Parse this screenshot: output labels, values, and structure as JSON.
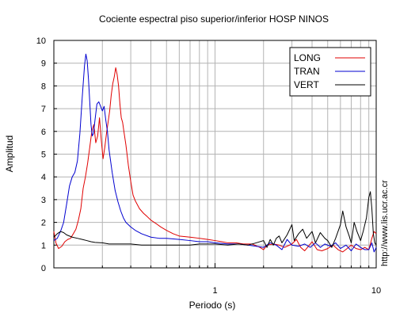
{
  "chart_data": {
    "type": "line",
    "title": "Cociente espectral piso superior/inferior  HOSP NINOS",
    "xlabel": "Periodo (s)",
    "ylabel": "Amplitud",
    "xscale": "log",
    "xlim": [
      0.1,
      10
    ],
    "ylim": [
      0,
      10
    ],
    "grid": true,
    "legend_position": "top-right",
    "watermark": "http://www.lis.ucr.ac.cr",
    "x_tick_labels": [
      "1",
      "10"
    ],
    "y_tick_labels": [
      "0",
      "1",
      "2",
      "3",
      "4",
      "5",
      "6",
      "7",
      "8",
      "9",
      "10"
    ],
    "series": [
      {
        "name": "LONG",
        "color": "#e00000",
        "points": [
          [
            0.1,
            1.6
          ],
          [
            0.103,
            1.1
          ],
          [
            0.107,
            0.85
          ],
          [
            0.112,
            0.95
          ],
          [
            0.117,
            1.15
          ],
          [
            0.122,
            1.25
          ],
          [
            0.127,
            1.3
          ],
          [
            0.132,
            1.5
          ],
          [
            0.137,
            1.7
          ],
          [
            0.142,
            2.1
          ],
          [
            0.147,
            2.6
          ],
          [
            0.152,
            3.5
          ],
          [
            0.157,
            4.0
          ],
          [
            0.162,
            4.6
          ],
          [
            0.167,
            5.3
          ],
          [
            0.172,
            6.0
          ],
          [
            0.177,
            6.3
          ],
          [
            0.182,
            5.5
          ],
          [
            0.187,
            5.8
          ],
          [
            0.192,
            6.6
          ],
          [
            0.197,
            5.6
          ],
          [
            0.202,
            4.8
          ],
          [
            0.207,
            5.3
          ],
          [
            0.212,
            5.9
          ],
          [
            0.217,
            6.4
          ],
          [
            0.222,
            6.9
          ],
          [
            0.227,
            7.6
          ],
          [
            0.232,
            8.1
          ],
          [
            0.237,
            8.4
          ],
          [
            0.242,
            8.8
          ],
          [
            0.247,
            8.5
          ],
          [
            0.252,
            8.0
          ],
          [
            0.257,
            7.2
          ],
          [
            0.262,
            6.6
          ],
          [
            0.267,
            6.4
          ],
          [
            0.272,
            6.0
          ],
          [
            0.28,
            5.4
          ],
          [
            0.29,
            4.5
          ],
          [
            0.3,
            3.8
          ],
          [
            0.31,
            3.2
          ],
          [
            0.32,
            2.95
          ],
          [
            0.34,
            2.6
          ],
          [
            0.36,
            2.4
          ],
          [
            0.38,
            2.25
          ],
          [
            0.4,
            2.1
          ],
          [
            0.43,
            1.95
          ],
          [
            0.46,
            1.8
          ],
          [
            0.5,
            1.65
          ],
          [
            0.55,
            1.5
          ],
          [
            0.6,
            1.4
          ],
          [
            0.7,
            1.35
          ],
          [
            0.8,
            1.3
          ],
          [
            0.9,
            1.25
          ],
          [
            1.0,
            1.2
          ],
          [
            1.1,
            1.15
          ],
          [
            1.2,
            1.1
          ],
          [
            1.35,
            1.1
          ],
          [
            1.5,
            1.05
          ],
          [
            1.7,
            1.05
          ],
          [
            1.9,
            0.9
          ],
          [
            2.0,
            0.8
          ],
          [
            2.1,
            1.0
          ],
          [
            2.3,
            1.05
          ],
          [
            2.5,
            1.0
          ],
          [
            2.7,
            0.9
          ],
          [
            3.0,
            1.05
          ],
          [
            3.2,
            1.25
          ],
          [
            3.4,
            0.9
          ],
          [
            3.6,
            0.75
          ],
          [
            3.8,
            0.95
          ],
          [
            4.0,
            1.15
          ],
          [
            4.3,
            0.8
          ],
          [
            4.6,
            0.75
          ],
          [
            5.0,
            0.85
          ],
          [
            5.4,
            1.0
          ],
          [
            5.8,
            0.8
          ],
          [
            6.2,
            0.7
          ],
          [
            6.6,
            0.85
          ],
          [
            7.0,
            1.0
          ],
          [
            7.5,
            0.85
          ],
          [
            8.0,
            0.8
          ],
          [
            8.5,
            0.9
          ],
          [
            9.0,
            0.8
          ],
          [
            9.4,
            1.3
          ],
          [
            9.7,
            1.6
          ],
          [
            10.0,
            1.5
          ]
        ]
      },
      {
        "name": "TRAN",
        "color": "#0000d0",
        "points": [
          [
            0.1,
            1.2
          ],
          [
            0.105,
            1.3
          ],
          [
            0.11,
            1.6
          ],
          [
            0.115,
            2.0
          ],
          [
            0.12,
            2.8
          ],
          [
            0.125,
            3.6
          ],
          [
            0.13,
            4.0
          ],
          [
            0.135,
            4.2
          ],
          [
            0.14,
            4.7
          ],
          [
            0.145,
            5.9
          ],
          [
            0.15,
            7.5
          ],
          [
            0.155,
            8.9
          ],
          [
            0.158,
            9.4
          ],
          [
            0.161,
            9.1
          ],
          [
            0.164,
            8.3
          ],
          [
            0.167,
            7.3
          ],
          [
            0.17,
            6.3
          ],
          [
            0.173,
            5.8
          ],
          [
            0.176,
            5.9
          ],
          [
            0.18,
            6.5
          ],
          [
            0.185,
            7.2
          ],
          [
            0.19,
            7.3
          ],
          [
            0.195,
            7.1
          ],
          [
            0.2,
            6.9
          ],
          [
            0.205,
            7.1
          ],
          [
            0.21,
            6.5
          ],
          [
            0.215,
            6.0
          ],
          [
            0.22,
            5.2
          ],
          [
            0.23,
            4.2
          ],
          [
            0.24,
            3.4
          ],
          [
            0.25,
            2.9
          ],
          [
            0.26,
            2.5
          ],
          [
            0.27,
            2.2
          ],
          [
            0.28,
            2.0
          ],
          [
            0.3,
            1.8
          ],
          [
            0.32,
            1.65
          ],
          [
            0.35,
            1.5
          ],
          [
            0.4,
            1.35
          ],
          [
            0.45,
            1.3
          ],
          [
            0.5,
            1.3
          ],
          [
            0.6,
            1.25
          ],
          [
            0.7,
            1.2
          ],
          [
            0.8,
            1.15
          ],
          [
            0.9,
            1.15
          ],
          [
            1.0,
            1.1
          ],
          [
            1.2,
            1.05
          ],
          [
            1.4,
            1.05
          ],
          [
            1.6,
            1.0
          ],
          [
            1.8,
            0.95
          ],
          [
            2.0,
            0.9
          ],
          [
            2.2,
            1.1
          ],
          [
            2.4,
            1.0
          ],
          [
            2.6,
            0.8
          ],
          [
            2.8,
            1.25
          ],
          [
            3.0,
            1.0
          ],
          [
            3.3,
            0.95
          ],
          [
            3.6,
            1.05
          ],
          [
            3.9,
            0.9
          ],
          [
            4.2,
            1.1
          ],
          [
            4.5,
            0.9
          ],
          [
            4.8,
            1.05
          ],
          [
            5.2,
            0.95
          ],
          [
            5.6,
            1.1
          ],
          [
            6.0,
            0.85
          ],
          [
            6.5,
            1.0
          ],
          [
            7.0,
            0.75
          ],
          [
            7.5,
            1.05
          ],
          [
            8.0,
            0.9
          ],
          [
            8.5,
            0.8
          ],
          [
            9.0,
            0.8
          ],
          [
            9.4,
            1.1
          ],
          [
            9.7,
            0.7
          ],
          [
            10.0,
            0.9
          ]
        ]
      },
      {
        "name": "VERT",
        "color": "#000000",
        "points": [
          [
            0.1,
            1.35
          ],
          [
            0.105,
            1.5
          ],
          [
            0.11,
            1.6
          ],
          [
            0.115,
            1.55
          ],
          [
            0.12,
            1.45
          ],
          [
            0.13,
            1.35
          ],
          [
            0.14,
            1.3
          ],
          [
            0.15,
            1.25
          ],
          [
            0.16,
            1.2
          ],
          [
            0.17,
            1.15
          ],
          [
            0.18,
            1.12
          ],
          [
            0.2,
            1.1
          ],
          [
            0.22,
            1.05
          ],
          [
            0.25,
            1.05
          ],
          [
            0.3,
            1.05
          ],
          [
            0.35,
            1.0
          ],
          [
            0.4,
            1.0
          ],
          [
            0.5,
            1.0
          ],
          [
            0.6,
            1.0
          ],
          [
            0.7,
            1.0
          ],
          [
            0.8,
            1.05
          ],
          [
            0.9,
            1.05
          ],
          [
            1.0,
            1.05
          ],
          [
            1.2,
            1.0
          ],
          [
            1.4,
            1.05
          ],
          [
            1.6,
            1.0
          ],
          [
            1.8,
            1.1
          ],
          [
            2.0,
            1.2
          ],
          [
            2.1,
            0.9
          ],
          [
            2.2,
            1.25
          ],
          [
            2.3,
            1.0
          ],
          [
            2.4,
            1.3
          ],
          [
            2.5,
            1.4
          ],
          [
            2.6,
            1.1
          ],
          [
            2.8,
            1.45
          ],
          [
            3.0,
            1.9
          ],
          [
            3.1,
            1.2
          ],
          [
            3.3,
            1.5
          ],
          [
            3.5,
            1.7
          ],
          [
            3.7,
            1.3
          ],
          [
            4.0,
            1.6
          ],
          [
            4.2,
            1.1
          ],
          [
            4.5,
            1.55
          ],
          [
            4.8,
            1.3
          ],
          [
            5.0,
            1.2
          ],
          [
            5.3,
            0.9
          ],
          [
            5.6,
            1.3
          ],
          [
            6.0,
            1.9
          ],
          [
            6.2,
            2.5
          ],
          [
            6.5,
            1.8
          ],
          [
            6.8,
            1.4
          ],
          [
            7.0,
            1.1
          ],
          [
            7.3,
            2.0
          ],
          [
            7.6,
            1.6
          ],
          [
            8.0,
            1.2
          ],
          [
            8.3,
            1.6
          ],
          [
            8.7,
            2.2
          ],
          [
            9.0,
            3.1
          ],
          [
            9.2,
            3.35
          ],
          [
            9.4,
            2.6
          ],
          [
            9.6,
            1.5
          ],
          [
            9.8,
            1.1
          ],
          [
            10.0,
            1.0
          ]
        ]
      }
    ]
  }
}
